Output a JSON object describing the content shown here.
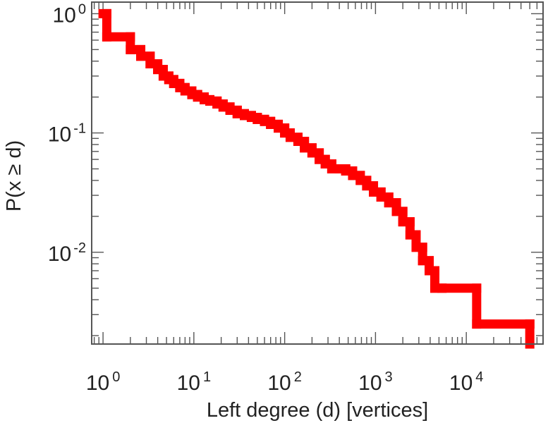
{
  "chart_data": {
    "type": "line",
    "subtype": "ccdf-step",
    "title": "",
    "xlabel": "Left degree (d) [vertices]",
    "ylabel": "P(x ≥ d)",
    "xscale": "log",
    "yscale": "log",
    "xlim": [
      0.75,
      70000
    ],
    "ylim": [
      0.0017,
      1.25
    ],
    "grid": false,
    "legend": "none",
    "color": "#ff0000",
    "x_ticks": [
      {
        "value": 1,
        "base": "10",
        "exp": "0"
      },
      {
        "value": 10,
        "base": "10",
        "exp": "1"
      },
      {
        "value": 100,
        "base": "10",
        "exp": "2"
      },
      {
        "value": 1000,
        "base": "10",
        "exp": "3"
      },
      {
        "value": 10000,
        "base": "10",
        "exp": "4"
      }
    ],
    "y_ticks": [
      {
        "value": 1,
        "base": "10",
        "exp": "0"
      },
      {
        "value": 0.1,
        "base": "10",
        "exp": "-1"
      },
      {
        "value": 0.01,
        "base": "10",
        "exp": "-2"
      }
    ],
    "series": [
      {
        "x": [
          1,
          1.1,
          2,
          2.6,
          3.3,
          4,
          4.6,
          5.3,
          6,
          7,
          8,
          9.5,
          11,
          13,
          15,
          18,
          21,
          25,
          30,
          36,
          43,
          50,
          60,
          70,
          85,
          100,
          115,
          140,
          165,
          200,
          240,
          280,
          330,
          400,
          470,
          560,
          680,
          800,
          950,
          1150,
          1400,
          1700,
          2000,
          2400,
          2800,
          3300,
          3900,
          4500,
          5400,
          13000,
          50000
        ],
        "y": [
          1.0,
          0.64,
          0.5,
          0.44,
          0.38,
          0.34,
          0.3,
          0.28,
          0.26,
          0.24,
          0.225,
          0.21,
          0.2,
          0.19,
          0.185,
          0.175,
          0.165,
          0.155,
          0.145,
          0.14,
          0.135,
          0.13,
          0.125,
          0.118,
          0.11,
          0.1,
          0.092,
          0.085,
          0.075,
          0.068,
          0.06,
          0.055,
          0.05,
          0.05,
          0.048,
          0.044,
          0.04,
          0.036,
          0.032,
          0.029,
          0.026,
          0.022,
          0.018,
          0.014,
          0.011,
          0.0085,
          0.007,
          0.005,
          0.005,
          0.0025,
          0.0025
        ]
      }
    ]
  }
}
